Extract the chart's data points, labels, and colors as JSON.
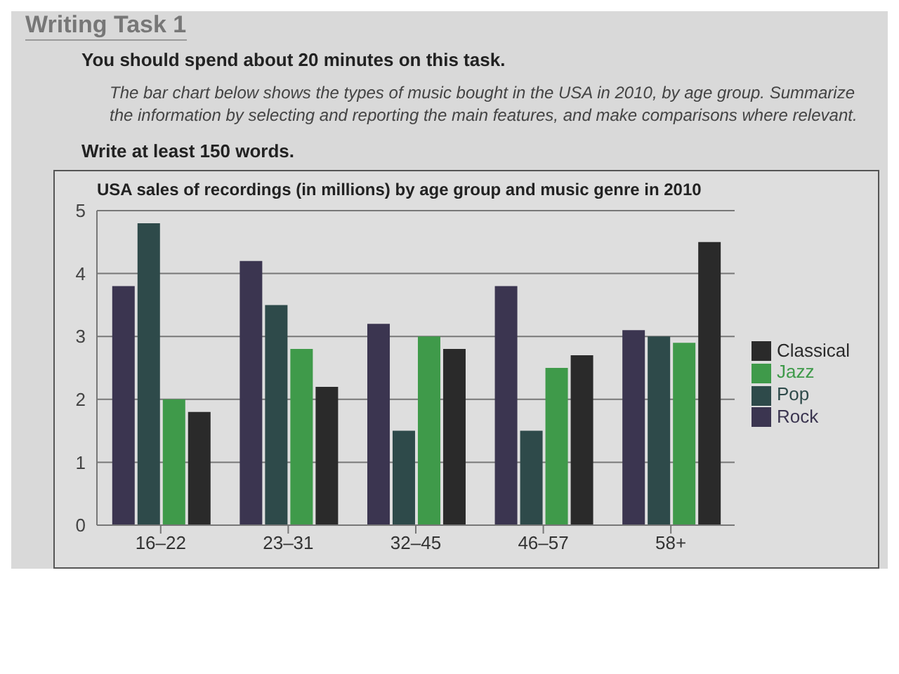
{
  "chart_data": {
    "type": "bar",
    "title": "USA sales of recordings (in millions) by age group and music genre in 2010",
    "annotations": [
      "Writing Task 1",
      "You should spend about 20 minutes on this task.",
      "The bar chart below shows the types of music bought in the USA in 2010, by age group. Summarize the information by selecting and reporting the main features, and make comparisons where relevant.",
      "Write at least 150 words."
    ],
    "categories": [
      "16–22",
      "23–31",
      "32–45",
      "46–57",
      "58+"
    ],
    "series": [
      {
        "name": "Rock",
        "color": "#3b3550",
        "values": [
          3.8,
          4.2,
          3.2,
          3.8,
          3.1
        ]
      },
      {
        "name": "Pop",
        "color": "#2e4a4a",
        "values": [
          4.8,
          3.5,
          1.5,
          1.5,
          3.0
        ]
      },
      {
        "name": "Jazz",
        "color": "#3f9a4a",
        "values": [
          2.0,
          2.8,
          3.0,
          2.5,
          2.9
        ]
      },
      {
        "name": "Classical",
        "color": "#2a2a2a",
        "values": [
          1.8,
          2.2,
          2.8,
          2.7,
          4.5
        ]
      }
    ],
    "ylim": [
      0,
      5
    ],
    "yticks": [
      0,
      1,
      2,
      3,
      4,
      5
    ],
    "grid": "y",
    "legend": "right"
  }
}
